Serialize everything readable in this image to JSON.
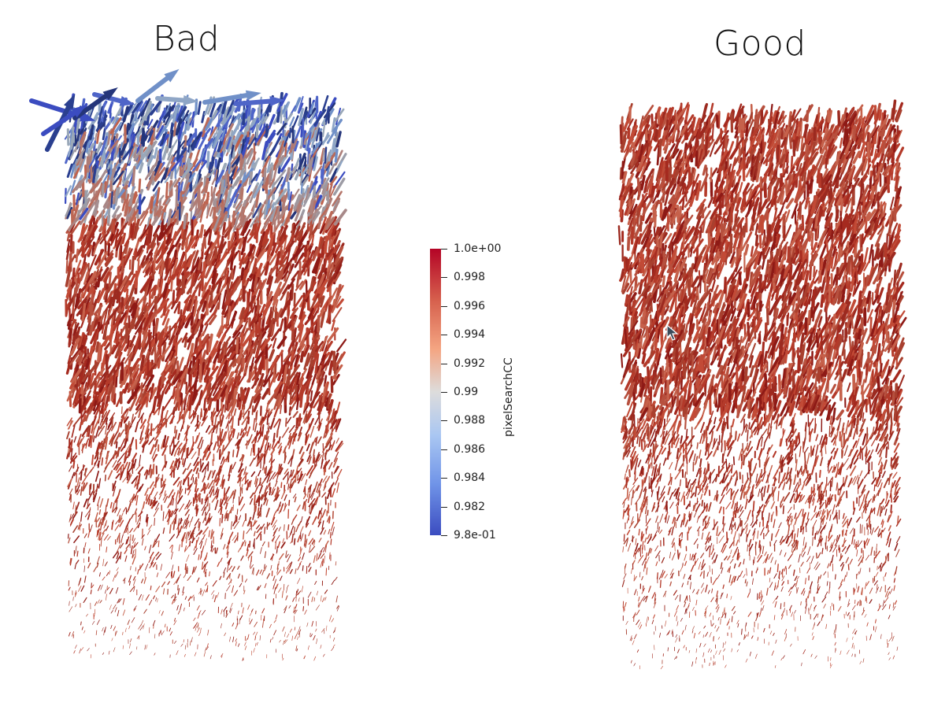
{
  "panels": {
    "left_title": "Bad",
    "right_title": "Good"
  },
  "colorbar": {
    "title": "pixelSearchCC",
    "labels": [
      "1.0e+00",
      "0.998",
      "0.996",
      "0.994",
      "0.992",
      "0.99",
      "0.988",
      "0.986",
      "0.984",
      "0.982",
      "9.8e-01"
    ],
    "range": [
      0.98,
      1.0
    ],
    "colormap": [
      "#b40426",
      "#d6604d",
      "#f4a582",
      "#dddcdc",
      "#aac7f2",
      "#7094e8",
      "#3b4cc0"
    ]
  },
  "colors": {
    "background": "#ffffff",
    "high": "#b40426",
    "mid": "#c85a45",
    "low": "#3b4cc0"
  },
  "icons": {
    "cursor": "arrow-pointer-icon"
  }
}
